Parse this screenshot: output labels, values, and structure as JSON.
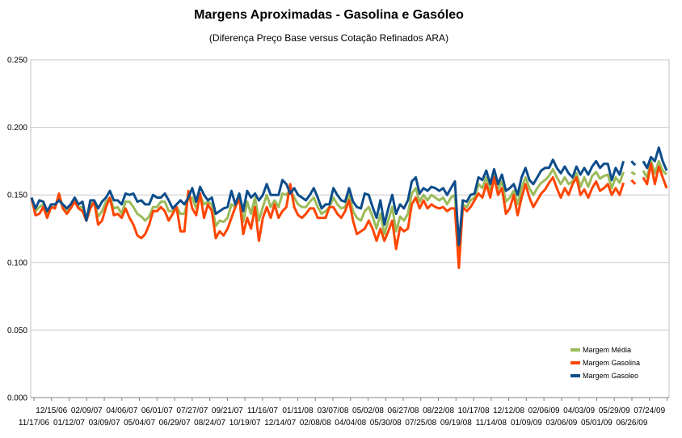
{
  "chart_data": {
    "type": "line",
    "title": "Margens Aproximadas - Gasolina e Gasóleo",
    "subtitle": "(Diferença Preço Base versus Cotação Refinados ARA)",
    "xlabel": "",
    "ylabel": "",
    "ylim": [
      0,
      0.25
    ],
    "y_ticks": [
      "0.000",
      "0.050",
      "0.100",
      "0.150",
      "0.200",
      "0.250"
    ],
    "x_ticks_top": [
      "12/15/06",
      "02/09/07",
      "04/06/07",
      "06/01/07",
      "07/27/07",
      "09/21/07",
      "11/16/07",
      "01/11/08",
      "03/07/08",
      "05/02/08",
      "06/27/08",
      "08/22/08",
      "10/17/08",
      "12/12/08",
      "02/06/09",
      "04/03/09",
      "05/29/09",
      "07/24/09"
    ],
    "x_ticks_bottom": [
      "11/17/06",
      "01/12/07",
      "03/09/07",
      "05/04/07",
      "06/29/07",
      "08/24/07",
      "10/19/07",
      "12/14/07",
      "02/08/08",
      "04/04/08",
      "05/30/08",
      "07/25/08",
      "09/19/08",
      "11/14/08",
      "01/09/09",
      "03/06/09",
      "05/01/09",
      "06/26/09"
    ],
    "grid": true,
    "legend_position": "bottom-right",
    "series": [
      {
        "name": "Margem Média",
        "color": "#9bbb59",
        "values": [
          0.148,
          0.138,
          0.141,
          0.143,
          0.136,
          0.141,
          0.141,
          0.148,
          0.141,
          0.138,
          0.141,
          0.146,
          0.141,
          0.141,
          0.131,
          0.143,
          0.145,
          0.134,
          0.138,
          0.145,
          0.148,
          0.14,
          0.141,
          0.136,
          0.145,
          0.145,
          0.141,
          0.136,
          0.134,
          0.131,
          0.134,
          0.141,
          0.141,
          0.145,
          0.145,
          0.138,
          0.138,
          0.141,
          0.136,
          0.136,
          0.148,
          0.148,
          0.14,
          0.15,
          0.143,
          0.145,
          0.143,
          0.127,
          0.131,
          0.13,
          0.133,
          0.143,
          0.141,
          0.148,
          0.13,
          0.145,
          0.136,
          0.148,
          0.131,
          0.141,
          0.15,
          0.141,
          0.146,
          0.141,
          0.151,
          0.15,
          0.154,
          0.148,
          0.143,
          0.141,
          0.141,
          0.145,
          0.148,
          0.141,
          0.136,
          0.138,
          0.141,
          0.148,
          0.143,
          0.14,
          0.141,
          0.15,
          0.138,
          0.133,
          0.131,
          0.138,
          0.141,
          0.134,
          0.125,
          0.136,
          0.121,
          0.131,
          0.141,
          0.123,
          0.134,
          0.131,
          0.136,
          0.151,
          0.155,
          0.145,
          0.15,
          0.146,
          0.15,
          0.148,
          0.146,
          0.148,
          0.143,
          0.148,
          0.15,
          0.104,
          0.143,
          0.141,
          0.146,
          0.148,
          0.158,
          0.155,
          0.163,
          0.153,
          0.164,
          0.154,
          0.16,
          0.145,
          0.148,
          0.153,
          0.143,
          0.155,
          0.163,
          0.155,
          0.15,
          0.155,
          0.159,
          0.161,
          0.164,
          0.169,
          0.163,
          0.158,
          0.163,
          0.158,
          0.16,
          0.166,
          0.156,
          0.163,
          0.156,
          0.164,
          0.167,
          0.162,
          0.164,
          0.165,
          0.155,
          0.163,
          0.159,
          0.167,
          null,
          0.167,
          0.165,
          null,
          0.168,
          0.163,
          0.175,
          0.166,
          0.175,
          0.168,
          0.165
        ]
      },
      {
        "name": "Margem Gasolina",
        "color": "#ff4500",
        "values": [
          0.148,
          0.135,
          0.136,
          0.141,
          0.133,
          0.141,
          0.14,
          0.151,
          0.14,
          0.136,
          0.14,
          0.145,
          0.14,
          0.138,
          0.131,
          0.14,
          0.145,
          0.128,
          0.131,
          0.141,
          0.148,
          0.135,
          0.136,
          0.133,
          0.14,
          0.133,
          0.128,
          0.12,
          0.118,
          0.121,
          0.128,
          0.138,
          0.138,
          0.141,
          0.138,
          0.131,
          0.136,
          0.141,
          0.123,
          0.123,
          0.153,
          0.14,
          0.135,
          0.151,
          0.133,
          0.143,
          0.138,
          0.118,
          0.123,
          0.12,
          0.125,
          0.133,
          0.141,
          0.148,
          0.121,
          0.133,
          0.125,
          0.141,
          0.116,
          0.133,
          0.141,
          0.133,
          0.143,
          0.133,
          0.138,
          0.141,
          0.158,
          0.141,
          0.135,
          0.133,
          0.136,
          0.14,
          0.14,
          0.133,
          0.133,
          0.133,
          0.141,
          0.141,
          0.136,
          0.133,
          0.138,
          0.146,
          0.131,
          0.121,
          0.123,
          0.125,
          0.131,
          0.125,
          0.116,
          0.125,
          0.116,
          0.123,
          0.131,
          0.11,
          0.126,
          0.123,
          0.125,
          0.143,
          0.148,
          0.14,
          0.146,
          0.14,
          0.143,
          0.141,
          0.14,
          0.141,
          0.138,
          0.14,
          0.14,
          0.096,
          0.141,
          0.138,
          0.141,
          0.146,
          0.151,
          0.148,
          0.158,
          0.148,
          0.163,
          0.15,
          0.155,
          0.136,
          0.14,
          0.15,
          0.135,
          0.148,
          0.158,
          0.148,
          0.141,
          0.146,
          0.151,
          0.154,
          0.159,
          0.163,
          0.155,
          0.148,
          0.155,
          0.15,
          0.158,
          0.163,
          0.15,
          0.154,
          0.148,
          0.155,
          0.16,
          0.153,
          0.155,
          0.158,
          0.15,
          0.155,
          0.15,
          0.159,
          null,
          0.161,
          0.158,
          null,
          0.163,
          0.158,
          0.173,
          0.158,
          0.171,
          0.163,
          0.155
        ]
      },
      {
        "name": "Margem Gasoleo",
        "color": "#0d4d8a",
        "values": [
          0.148,
          0.14,
          0.146,
          0.145,
          0.138,
          0.143,
          0.143,
          0.146,
          0.143,
          0.14,
          0.143,
          0.148,
          0.143,
          0.145,
          0.131,
          0.146,
          0.146,
          0.14,
          0.145,
          0.148,
          0.153,
          0.146,
          0.146,
          0.143,
          0.151,
          0.15,
          0.151,
          0.145,
          0.146,
          0.143,
          0.143,
          0.15,
          0.148,
          0.148,
          0.151,
          0.146,
          0.14,
          0.143,
          0.146,
          0.143,
          0.148,
          0.155,
          0.145,
          0.156,
          0.15,
          0.146,
          0.148,
          0.136,
          0.138,
          0.14,
          0.141,
          0.153,
          0.143,
          0.151,
          0.138,
          0.153,
          0.148,
          0.151,
          0.146,
          0.15,
          0.158,
          0.15,
          0.15,
          0.15,
          0.161,
          0.158,
          0.151,
          0.155,
          0.15,
          0.148,
          0.146,
          0.15,
          0.155,
          0.148,
          0.14,
          0.143,
          0.143,
          0.155,
          0.15,
          0.146,
          0.145,
          0.155,
          0.145,
          0.141,
          0.14,
          0.151,
          0.15,
          0.141,
          0.133,
          0.146,
          0.128,
          0.14,
          0.15,
          0.136,
          0.143,
          0.14,
          0.146,
          0.16,
          0.163,
          0.151,
          0.155,
          0.153,
          0.156,
          0.155,
          0.153,
          0.155,
          0.15,
          0.155,
          0.16,
          0.113,
          0.146,
          0.145,
          0.15,
          0.151,
          0.163,
          0.161,
          0.168,
          0.158,
          0.169,
          0.158,
          0.165,
          0.153,
          0.155,
          0.158,
          0.15,
          0.163,
          0.17,
          0.161,
          0.158,
          0.163,
          0.168,
          0.17,
          0.17,
          0.176,
          0.17,
          0.166,
          0.171,
          0.166,
          0.163,
          0.171,
          0.165,
          0.17,
          0.165,
          0.171,
          0.175,
          0.17,
          0.173,
          0.173,
          0.161,
          0.17,
          0.165,
          0.175,
          null,
          0.175,
          0.172,
          null,
          0.175,
          0.17,
          0.178,
          0.175,
          0.185,
          0.175,
          0.168
        ]
      }
    ]
  }
}
